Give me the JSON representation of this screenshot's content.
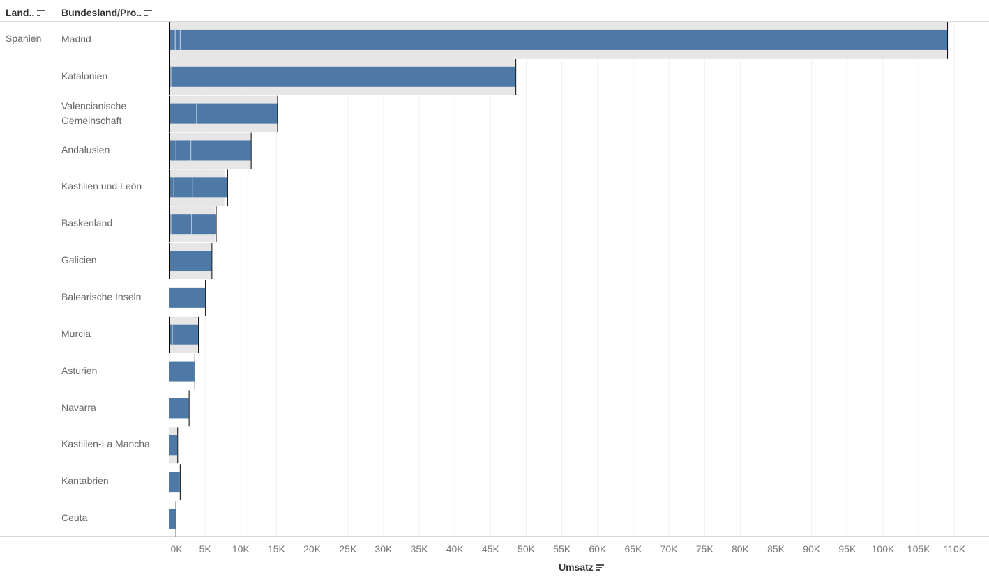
{
  "header": {
    "col1_label": "Land..",
    "col2_label": "Bundesland/Pro..",
    "sort_icon": "sort-descending-icon"
  },
  "colors": {
    "bar": "#4e79a7",
    "reference_band": "#e6e6e6",
    "reference_line": "#000000"
  },
  "chart_data": {
    "type": "bar",
    "orientation": "horizontal",
    "country": "Spanien",
    "categories": [
      "Madrid",
      "Katalonien",
      "Valencianische Gemeinschaft",
      "Andalusien",
      "Kastilien und León",
      "Baskenland",
      "Galicien",
      "Balearische Inseln",
      "Murcia",
      "Asturien",
      "Navarra",
      "Kastilien-La Mancha",
      "Kantabrien",
      "Ceuta"
    ],
    "series": [
      {
        "values": [
          109000,
          48500,
          15100,
          11400,
          8100,
          6500,
          5900,
          5000,
          4000,
          3500,
          2700,
          1100,
          1450,
          850
        ]
      }
    ],
    "reference_band": [
      109000,
      48500,
      15100,
      11400,
      7700,
      6400,
      5800,
      0,
      3900,
      0,
      0,
      1100,
      0,
      0
    ],
    "segments": [
      [
        0,
        800,
        1500
      ],
      [
        0,
        200
      ],
      [
        0,
        3800
      ],
      [
        0,
        900,
        3000
      ],
      [
        0,
        600,
        3200
      ],
      [
        0,
        200,
        3100
      ],
      [
        0
      ],
      [],
      [
        0,
        400
      ],
      [],
      [],
      [],
      [],
      []
    ],
    "xlabel": "Umsatz",
    "xlim": [
      0,
      112000
    ],
    "xticks": [
      0,
      5000,
      10000,
      15000,
      20000,
      25000,
      30000,
      35000,
      40000,
      45000,
      50000,
      55000,
      60000,
      65000,
      70000,
      75000,
      80000,
      85000,
      90000,
      95000,
      100000,
      105000,
      110000
    ],
    "xtick_labels": [
      "0K",
      "5K",
      "10K",
      "15K",
      "20K",
      "25K",
      "30K",
      "35K",
      "40K",
      "45K",
      "50K",
      "55K",
      "60K",
      "65K",
      "70K",
      "75K",
      "80K",
      "85K",
      "90K",
      "95K",
      "100K",
      "105K",
      "110K"
    ],
    "grid": true
  }
}
